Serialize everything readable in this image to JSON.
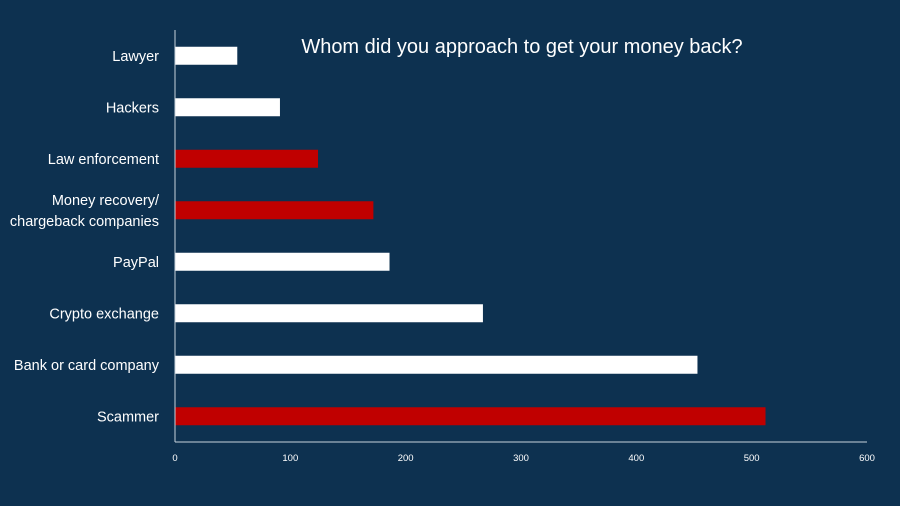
{
  "chart_data": {
    "type": "bar",
    "orientation": "horizontal",
    "title": "Whom did you approach to get your money back?",
    "categories": [
      "Lawyer",
      "Hackers",
      "Law enforcement",
      "Money recovery/\nchargeback companies",
      "PayPal",
      "Crypto exchange",
      "Bank or card company",
      "Scammer"
    ],
    "values": [
      54,
      91,
      124,
      172,
      186,
      267,
      453,
      512
    ],
    "highlighted": [
      false,
      false,
      true,
      true,
      false,
      false,
      false,
      true
    ],
    "xlim": [
      0,
      600
    ],
    "xticks": [
      0,
      100,
      200,
      300,
      400,
      500,
      600
    ],
    "grid": false,
    "colors": {
      "background": "#0d3150",
      "default_bar": "#ffffff",
      "highlight_bar": "#c00000",
      "axis": "#c8d3dd"
    }
  }
}
